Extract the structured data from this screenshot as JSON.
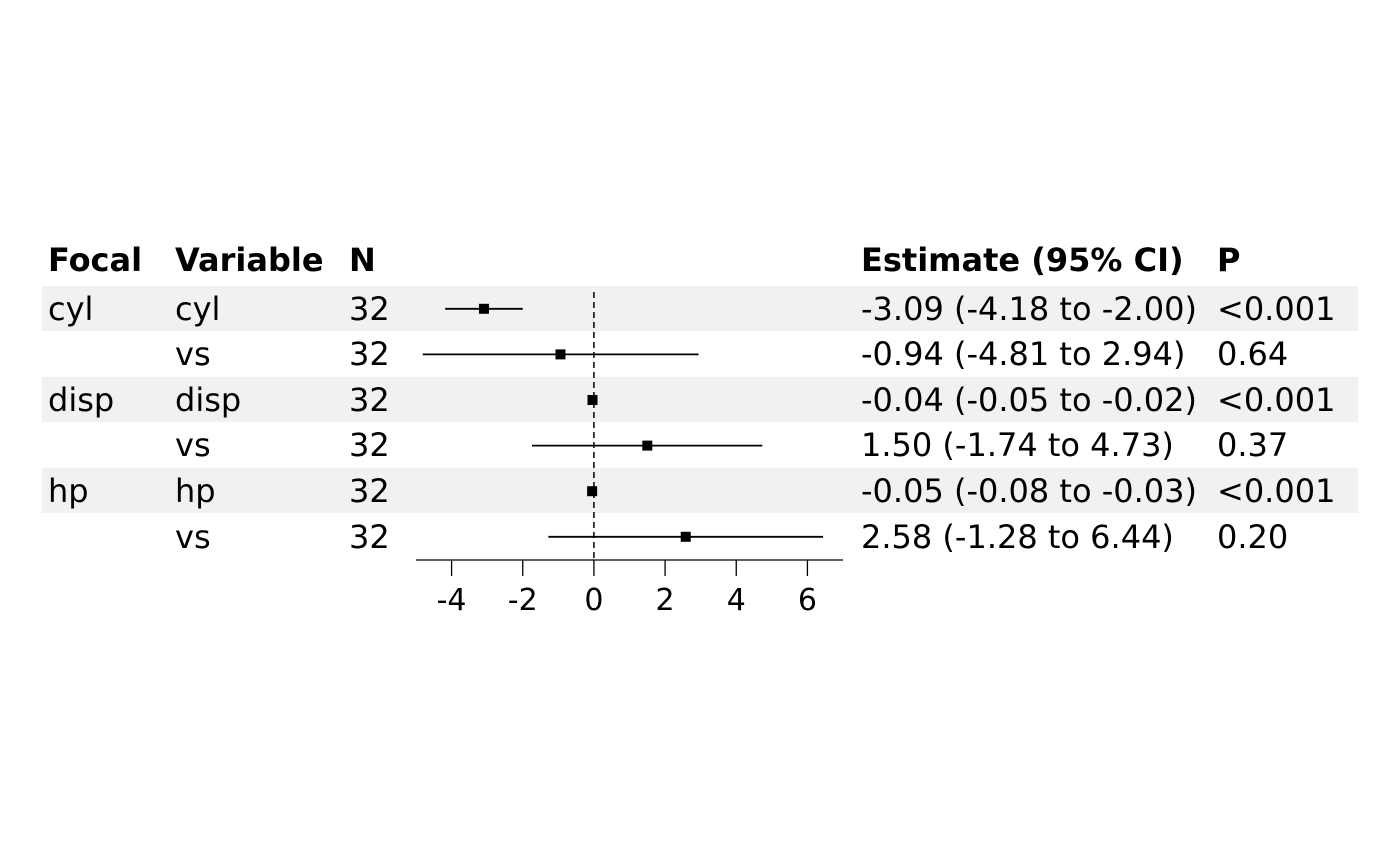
{
  "headers": {
    "focal": "Focal",
    "variable": "Variable",
    "n": "N",
    "estimate": "Estimate (95% CI)",
    "p": "P"
  },
  "rows": [
    {
      "focal": "cyl",
      "variable": "cyl",
      "n": "32",
      "estimate_text": "-3.09 (-4.18 to -2.00)",
      "p": "<0.001"
    },
    {
      "focal": "",
      "variable": "vs",
      "n": "32",
      "estimate_text": "-0.94 (-4.81 to 2.94)",
      "p": "0.64"
    },
    {
      "focal": "disp",
      "variable": "disp",
      "n": "32",
      "estimate_text": "-0.04 (-0.05 to -0.02)",
      "p": "<0.001"
    },
    {
      "focal": "",
      "variable": "vs",
      "n": "32",
      "estimate_text": "1.50 (-1.74 to 4.73)",
      "p": "0.37"
    },
    {
      "focal": "hp",
      "variable": "hp",
      "n": "32",
      "estimate_text": "-0.05 (-0.08 to -0.03)",
      "p": "<0.001"
    },
    {
      "focal": "",
      "variable": "vs",
      "n": "32",
      "estimate_text": "2.58 (-1.28 to 6.44)",
      "p": "0.20"
    }
  ],
  "chart_data": {
    "type": "scatter",
    "title": "",
    "xlabel": "",
    "ylabel": "",
    "xlim": [
      -5,
      7
    ],
    "ticks": [
      -4,
      -2,
      0,
      2,
      4,
      6
    ],
    "tick_labels": [
      "-4",
      "-2",
      "0",
      "2",
      "4",
      "6"
    ],
    "reference_line": 0,
    "grid": false,
    "categories": [
      "cyl: cyl",
      "cyl: vs",
      "disp: disp",
      "disp: vs",
      "hp: hp",
      "hp: vs"
    ],
    "points": [
      {
        "estimate": -3.09,
        "lower": -4.18,
        "upper": -2.0
      },
      {
        "estimate": -0.94,
        "lower": -4.81,
        "upper": 2.94
      },
      {
        "estimate": -0.04,
        "lower": -0.05,
        "upper": -0.02
      },
      {
        "estimate": 1.5,
        "lower": -1.74,
        "upper": 4.73
      },
      {
        "estimate": -0.05,
        "lower": -0.08,
        "upper": -0.03
      },
      {
        "estimate": 2.58,
        "lower": -1.28,
        "upper": 6.44
      }
    ]
  },
  "colors": {
    "stripe": "#eff2f1",
    "ink": "#000000"
  }
}
